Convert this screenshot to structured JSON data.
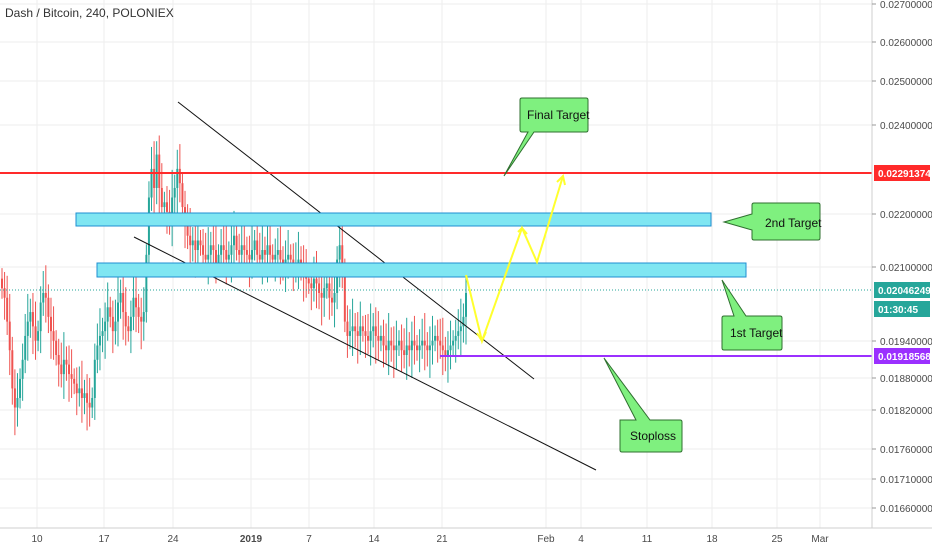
{
  "header": {
    "title": "Dash / Bitcoin, 240, POLONIEX"
  },
  "colors": {
    "up": "#26a69a",
    "down": "#ef5350",
    "zone_fill": "#7fe6f2",
    "zone_stroke": "#1f8fd1",
    "target_line": "#ff2a2a",
    "stop_line": "#9b30ff",
    "projection": "#ffff2e",
    "callout_fill": "#7ff07f",
    "callout_stroke": "#2f6f2f",
    "price_tag": "#26a69a",
    "grid": "#eeeeee"
  },
  "chart_data": {
    "type": "candlestick",
    "title": "Dash / Bitcoin, 240, POLONIEX",
    "y_ticks": [
      "0.02700000",
      "0.02600000",
      "0.02500000",
      "0.02400000",
      "0.02200000",
      "0.02100000",
      "0.01940000",
      "0.01880000",
      "0.01820000",
      "0.01760000",
      "0.01710000",
      "0.01660000"
    ],
    "x_ticks": [
      "10",
      "17",
      "24",
      "2019",
      "7",
      "14",
      "21",
      "Feb",
      "4",
      "11",
      "18",
      "25",
      "Mar"
    ],
    "price_tags": [
      {
        "text": "0.02291374",
        "color": "#ff2a2a"
      },
      {
        "text": "0.02046249",
        "color": "#26a69a"
      },
      {
        "text": "01:30:45",
        "color": "#26a69a"
      },
      {
        "text": "0.01918568",
        "color": "#9b30ff"
      }
    ],
    "levels": {
      "final_target": 0.02291374,
      "last_price": 0.02046249,
      "stoploss": 0.01918568
    },
    "zones": [
      {
        "name": "2nd Target zone",
        "low": 0.0218,
        "high": 0.022
      },
      {
        "name": "1st Target zone",
        "low": 0.0208,
        "high": 0.021
      }
    ],
    "callouts": [
      "Final Target",
      "2nd Target",
      "1st Target",
      "Stoploss"
    ],
    "candles_close": [
      0.0205,
      0.0203,
      0.0198,
      0.0192,
      0.0184,
      0.018,
      0.0182,
      0.0186,
      0.019,
      0.0195,
      0.0198,
      0.02,
      0.0197,
      0.0194,
      0.0196,
      0.0202,
      0.0204,
      0.0203,
      0.0199,
      0.0196,
      0.0194,
      0.0191,
      0.0189,
      0.0187,
      0.019,
      0.0189,
      0.0187,
      0.0186,
      0.0185,
      0.0183,
      0.0184,
      0.0182,
      0.0183,
      0.0181,
      0.018,
      0.0182,
      0.019,
      0.0193,
      0.0195,
      0.0196,
      0.0198,
      0.0201,
      0.0199,
      0.0196,
      0.0198,
      0.0202,
      0.0204,
      0.02,
      0.0197,
      0.0196,
      0.0199,
      0.0203,
      0.0201,
      0.0199,
      0.0198,
      0.02,
      0.0212,
      0.0224,
      0.023,
      0.0226,
      0.0233,
      0.0226,
      0.0222,
      0.0223,
      0.0221,
      0.0219,
      0.0224,
      0.0226,
      0.023,
      0.0227,
      0.0222,
      0.0218,
      0.0216,
      0.0214,
      0.0215,
      0.0213,
      0.0215,
      0.0214,
      0.0212,
      0.0211,
      0.0212,
      0.0214,
      0.0213,
      0.021,
      0.0212,
      0.0214,
      0.0213,
      0.0211,
      0.0212,
      0.0214,
      0.0216,
      0.0213,
      0.0212,
      0.0214,
      0.0213,
      0.0212,
      0.0211,
      0.0213,
      0.0215,
      0.0212,
      0.0211,
      0.0213,
      0.0212,
      0.0214,
      0.0212,
      0.0211,
      0.0212,
      0.0213,
      0.0211,
      0.021,
      0.0211,
      0.0212,
      0.0211,
      0.0209,
      0.021,
      0.0211,
      0.021,
      0.0208,
      0.0207,
      0.0206,
      0.0205,
      0.0207,
      0.0206,
      0.0204,
      0.0203,
      0.0205,
      0.0206,
      0.0203,
      0.0202,
      0.0204,
      0.0211,
      0.0214,
      0.0209,
      0.0198,
      0.0195,
      0.0196,
      0.0197,
      0.0196,
      0.0195,
      0.0197,
      0.0196,
      0.0195,
      0.0194,
      0.0196,
      0.0197,
      0.0195,
      0.0194,
      0.0195,
      0.0193,
      0.0192,
      0.0194,
      0.0193,
      0.0192,
      0.0193,
      0.0194,
      0.0192,
      0.0191,
      0.0193,
      0.0192,
      0.0194,
      0.0193,
      0.0192,
      0.0193,
      0.0194,
      0.0193,
      0.0192,
      0.0193,
      0.0194,
      0.0195,
      0.0194,
      0.0193,
      0.0192,
      0.0191,
      0.0192,
      0.0193,
      0.0194,
      0.0195,
      0.0196,
      0.0197,
      0.0199,
      0.0204
    ]
  }
}
